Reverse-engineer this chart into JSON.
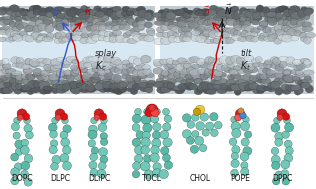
{
  "bg_color": "#ffffff",
  "lipid_labels": [
    "DOPC",
    "DLPC",
    "DLiPC",
    "TOCL",
    "CHOL",
    "POPE",
    "DPPC"
  ],
  "lipid_label_fontsize": 5.5,
  "left_n1_color": "#cc0000",
  "left_n2_color": "#3355cc",
  "right_n_color": "#cc0000",
  "right_N_color": "#222222",
  "splay_text": "splay",
  "tilt_text": "tilt",
  "kc_text": "K_c",
  "kt_text": "K_t",
  "membrane_core_color": "#d8e8f0",
  "membrane_outer_color": "#a0a8ac",
  "membrane_mid_color": "#b8c0c4",
  "bead_color_light": "#c0c8cc",
  "bead_color_dark": "#787e82",
  "teal_color": "#72c8b8",
  "teal_edge": "#2a6050",
  "red_bead": "#cc2222",
  "red_bead2": "#dd1111",
  "yellow_bead": "#e8c840",
  "blue_bead": "#4488cc"
}
